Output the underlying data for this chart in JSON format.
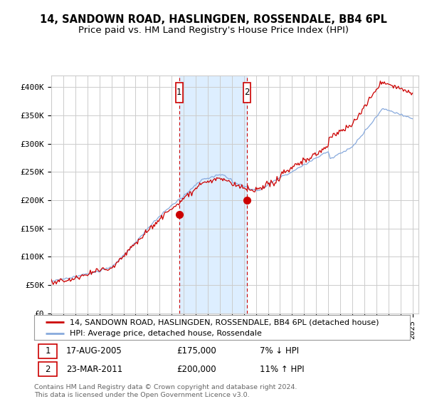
{
  "title": "14, SANDOWN ROAD, HASLINGDEN, ROSSENDALE, BB4 6PL",
  "subtitle": "Price paid vs. HM Land Registry's House Price Index (HPI)",
  "ylabel_ticks": [
    "£0",
    "£50K",
    "£100K",
    "£150K",
    "£200K",
    "£250K",
    "£300K",
    "£350K",
    "£400K"
  ],
  "ytick_values": [
    0,
    50000,
    100000,
    150000,
    200000,
    250000,
    300000,
    350000,
    400000
  ],
  "ylim": [
    0,
    420000
  ],
  "xlim_start": 1995.0,
  "xlim_end": 2025.5,
  "sale1_x": 2005.63,
  "sale1_y": 175000,
  "sale1_label": "1",
  "sale1_date": "17-AUG-2005",
  "sale1_price": "£175,000",
  "sale1_hpi": "7% ↓ HPI",
  "sale2_x": 2011.23,
  "sale2_y": 200000,
  "sale2_label": "2",
  "sale2_date": "23-MAR-2011",
  "sale2_price": "£200,000",
  "sale2_hpi": "11% ↑ HPI",
  "line_color_price": "#cc0000",
  "line_color_hpi": "#88aadd",
  "shade_color": "#ddeeff",
  "marker_box_color": "#cc0000",
  "grid_color": "#cccccc",
  "bg_color": "#ffffff",
  "legend_label_price": "14, SANDOWN ROAD, HASLINGDEN, ROSSENDALE, BB4 6PL (detached house)",
  "legend_label_hpi": "HPI: Average price, detached house, Rossendale",
  "footnote": "Contains HM Land Registry data © Crown copyright and database right 2024.\nThis data is licensed under the Open Government Licence v3.0.",
  "title_fontsize": 10.5,
  "subtitle_fontsize": 9.5,
  "tick_fontsize": 8,
  "legend_fontsize": 8
}
